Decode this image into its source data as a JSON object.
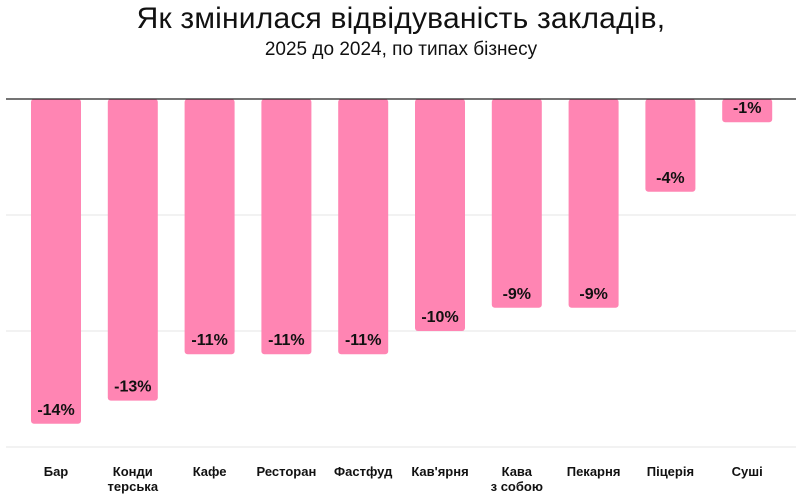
{
  "title": "Як змінилася відвідуваність закладів,",
  "subtitle": "2025 до 2024, по типах бізнесу",
  "colors": {
    "bar": "#ff85b3",
    "grid": "#e6e6e6",
    "axis": "#222222"
  },
  "chart_data": {
    "type": "bar",
    "title": "Як змінилася відвідуваність закладів,",
    "subtitle": "2025 до 2024, по типах бізнесу",
    "categories": [
      [
        "Бар"
      ],
      [
        "Конди",
        "терська"
      ],
      [
        "Кафе"
      ],
      [
        "Ресторан"
      ],
      [
        "Фастфуд"
      ],
      [
        "Кав'ярня"
      ],
      [
        "Кава",
        "з собою"
      ],
      [
        "Пекарня"
      ],
      [
        "Піцерія"
      ],
      [
        "Суші"
      ]
    ],
    "values": [
      -14,
      -13,
      -11,
      -11,
      -11,
      -10,
      -9,
      -9,
      -4,
      -1
    ],
    "data_labels": [
      "-14%",
      "-13%",
      "-11%",
      "-11%",
      "-11%",
      "-10%",
      "-9%",
      "-9%",
      "-4%",
      "-1%"
    ],
    "ylim": [
      -15,
      0
    ],
    "grid": true,
    "gridlines": [
      -5,
      -10,
      -15
    ],
    "legend": "none"
  }
}
